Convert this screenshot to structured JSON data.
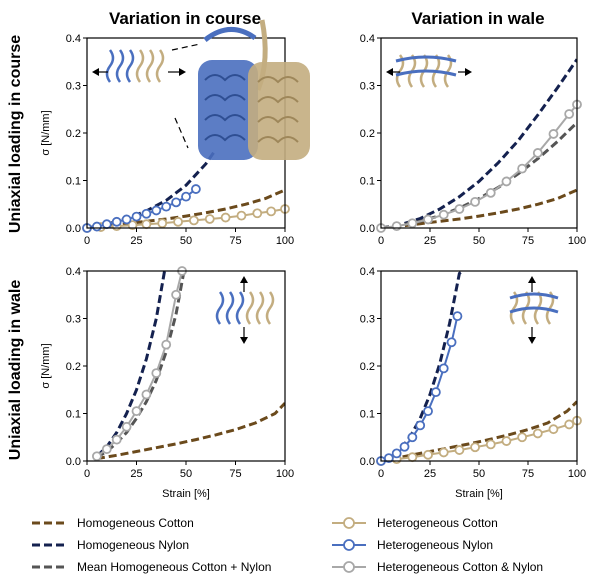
{
  "column_titles": [
    "Variation in course",
    "Variation in wale"
  ],
  "row_titles": [
    "Uniaxial loading in course",
    "Uniaxial loading in wale"
  ],
  "colors": {
    "homogeneous_cotton": "#6b4a1c",
    "homogeneous_nylon": "#14214f",
    "mean_homogeneous": "#555555",
    "heterogeneous_cotton": "#c3ad80",
    "heterogeneous_nylon": "#4a6fbf",
    "heterogeneous_cotton_nylon": "#a8a8a8"
  },
  "legend": [
    {
      "key": "homogeneous_cotton",
      "label": "Homogeneous Cotton",
      "style": "dashed"
    },
    {
      "key": "heterogeneous_cotton",
      "label": "Heterogeneous Cotton",
      "style": "marker"
    },
    {
      "key": "homogeneous_nylon",
      "label": "Homogeneous Nylon",
      "style": "dashed"
    },
    {
      "key": "heterogeneous_nylon",
      "label": "Heterogeneous Nylon",
      "style": "marker"
    },
    {
      "key": "mean_homogeneous",
      "label": "Mean Homogeneous Cotton + Nylon",
      "style": "dashed"
    },
    {
      "key": "heterogeneous_cotton_nylon",
      "label": "Heterogeneous Cotton & Nylon",
      "style": "marker"
    }
  ],
  "chart_data": [
    {
      "type": "line",
      "panel": "course-course",
      "column_title": "Variation in course",
      "row_title": "Uniaxial loading in course",
      "xlabel": "",
      "ylabel": "σ [N/mm]",
      "xlim": [
        0,
        100
      ],
      "ylim": [
        0,
        0.4
      ],
      "xticks": [
        0,
        25,
        50,
        75,
        100
      ],
      "yticks": [
        0.0,
        0.1,
        0.2,
        0.3,
        0.4
      ],
      "series": [
        {
          "key": "homogeneous_cotton",
          "style": "dashed",
          "x": [
            0,
            10,
            20,
            30,
            40,
            50,
            60,
            70,
            80,
            90,
            100
          ],
          "y": [
            0,
            0.004,
            0.009,
            0.014,
            0.019,
            0.025,
            0.032,
            0.04,
            0.05,
            0.062,
            0.08
          ]
        },
        {
          "key": "homogeneous_nylon",
          "style": "dashed",
          "x": [
            0,
            10,
            20,
            30,
            40,
            50,
            60,
            65
          ],
          "y": [
            0,
            0.008,
            0.02,
            0.036,
            0.058,
            0.09,
            0.135,
            0.165
          ]
        },
        {
          "key": "heterogeneous_cotton",
          "style": "marker",
          "x": [
            0,
            7,
            15,
            23,
            30,
            38,
            46,
            54,
            62,
            70,
            78,
            86,
            93,
            100
          ],
          "y": [
            0,
            0.002,
            0.004,
            0.006,
            0.008,
            0.01,
            0.013,
            0.016,
            0.019,
            0.022,
            0.026,
            0.031,
            0.035,
            0.04
          ]
        },
        {
          "key": "heterogeneous_nylon",
          "style": "marker",
          "x": [
            0,
            5,
            10,
            15,
            20,
            25,
            30,
            35,
            40,
            45,
            50,
            55
          ],
          "y": [
            0,
            0.003,
            0.008,
            0.013,
            0.018,
            0.024,
            0.03,
            0.037,
            0.045,
            0.054,
            0.066,
            0.082
          ]
        }
      ]
    },
    {
      "type": "line",
      "panel": "course-wale",
      "column_title": "Variation in wale",
      "row_title": "Uniaxial loading in course",
      "xlabel": "",
      "ylabel": "",
      "xlim": [
        0,
        100
      ],
      "ylim": [
        0,
        0.4
      ],
      "xticks": [
        0,
        25,
        50,
        75,
        100
      ],
      "yticks": [
        0.0,
        0.1,
        0.2,
        0.3,
        0.4
      ],
      "series": [
        {
          "key": "homogeneous_cotton",
          "style": "dashed",
          "x": [
            0,
            10,
            20,
            30,
            40,
            50,
            60,
            70,
            80,
            90,
            100
          ],
          "y": [
            0,
            0.004,
            0.009,
            0.014,
            0.019,
            0.025,
            0.032,
            0.04,
            0.05,
            0.062,
            0.08
          ]
        },
        {
          "key": "homogeneous_nylon",
          "style": "dashed",
          "x": [
            0,
            10,
            20,
            30,
            40,
            50,
            60,
            70,
            80,
            90,
            100
          ],
          "y": [
            0,
            0.007,
            0.02,
            0.04,
            0.066,
            0.098,
            0.138,
            0.184,
            0.238,
            0.295,
            0.355
          ]
        },
        {
          "key": "mean_homogeneous",
          "style": "dashed",
          "x": [
            0,
            10,
            20,
            30,
            40,
            50,
            60,
            70,
            80,
            90,
            100
          ],
          "y": [
            0,
            0.006,
            0.014,
            0.026,
            0.042,
            0.062,
            0.086,
            0.114,
            0.146,
            0.182,
            0.222
          ]
        },
        {
          "key": "heterogeneous_cotton_nylon",
          "style": "marker",
          "x": [
            0,
            8,
            16,
            24,
            32,
            40,
            48,
            56,
            64,
            72,
            80,
            88,
            96,
            100
          ],
          "y": [
            0,
            0.004,
            0.01,
            0.018,
            0.028,
            0.04,
            0.055,
            0.074,
            0.098,
            0.125,
            0.158,
            0.198,
            0.24,
            0.26
          ]
        }
      ]
    },
    {
      "type": "line",
      "panel": "wale-course",
      "column_title": "Variation in course",
      "row_title": "Uniaxial loading in wale",
      "xlabel": "Strain [%]",
      "ylabel": "σ [N/mm]",
      "xlim": [
        0,
        100
      ],
      "ylim": [
        0,
        0.4
      ],
      "xticks": [
        0,
        25,
        50,
        75,
        100
      ],
      "yticks": [
        0.0,
        0.1,
        0.2,
        0.3,
        0.4
      ],
      "series": [
        {
          "key": "homogeneous_cotton",
          "style": "dashed",
          "x": [
            5,
            15,
            25,
            35,
            45,
            55,
            65,
            75,
            85,
            95,
            100
          ],
          "y": [
            0.005,
            0.012,
            0.02,
            0.028,
            0.036,
            0.045,
            0.055,
            0.066,
            0.08,
            0.1,
            0.122
          ]
        },
        {
          "key": "homogeneous_nylon",
          "style": "dashed",
          "x": [
            5,
            10,
            15,
            20,
            25,
            30,
            35,
            40
          ],
          "y": [
            0.01,
            0.03,
            0.06,
            0.1,
            0.15,
            0.215,
            0.3,
            0.42
          ]
        },
        {
          "key": "mean_homogeneous",
          "style": "dashed",
          "x": [
            5,
            10,
            15,
            20,
            25,
            30,
            35,
            40,
            45,
            49
          ],
          "y": [
            0.008,
            0.02,
            0.038,
            0.06,
            0.09,
            0.125,
            0.17,
            0.23,
            0.31,
            0.4
          ]
        },
        {
          "key": "heterogeneous_cotton_nylon",
          "style": "marker",
          "x": [
            5,
            10,
            15,
            20,
            25,
            30,
            35,
            40,
            45,
            48
          ],
          "y": [
            0.01,
            0.025,
            0.045,
            0.072,
            0.105,
            0.14,
            0.185,
            0.245,
            0.35,
            0.4
          ]
        }
      ]
    },
    {
      "type": "line",
      "panel": "wale-wale",
      "column_title": "Variation in wale",
      "row_title": "Uniaxial loading in wale",
      "xlabel": "Strain [%]",
      "ylabel": "",
      "xlim": [
        0,
        100
      ],
      "ylim": [
        0,
        0.4
      ],
      "xticks": [
        0,
        25,
        50,
        75,
        100
      ],
      "yticks": [
        0.0,
        0.1,
        0.2,
        0.3,
        0.4
      ],
      "series": [
        {
          "key": "homogeneous_cotton",
          "style": "dashed",
          "x": [
            5,
            15,
            25,
            35,
            45,
            55,
            65,
            75,
            85,
            95,
            100
          ],
          "y": [
            0.004,
            0.012,
            0.02,
            0.028,
            0.036,
            0.045,
            0.055,
            0.066,
            0.08,
            0.105,
            0.125
          ]
        },
        {
          "key": "homogeneous_nylon",
          "style": "dashed",
          "x": [
            0,
            5,
            10,
            15,
            20,
            25,
            30,
            35,
            40,
            42
          ],
          "y": [
            0,
            0.008,
            0.025,
            0.052,
            0.09,
            0.14,
            0.205,
            0.29,
            0.395,
            0.4
          ]
        },
        {
          "key": "heterogeneous_cotton",
          "style": "marker",
          "x": [
            0,
            8,
            16,
            24,
            32,
            40,
            48,
            56,
            64,
            72,
            80,
            88,
            96,
            100
          ],
          "y": [
            0,
            0.004,
            0.008,
            0.013,
            0.018,
            0.023,
            0.029,
            0.035,
            0.042,
            0.05,
            0.058,
            0.067,
            0.077,
            0.085
          ]
        },
        {
          "key": "heterogeneous_nylon",
          "style": "marker",
          "x": [
            0,
            4,
            8,
            12,
            16,
            20,
            24,
            28,
            32,
            36,
            39
          ],
          "y": [
            0,
            0.006,
            0.016,
            0.03,
            0.05,
            0.075,
            0.105,
            0.145,
            0.195,
            0.25,
            0.305
          ]
        }
      ]
    }
  ]
}
